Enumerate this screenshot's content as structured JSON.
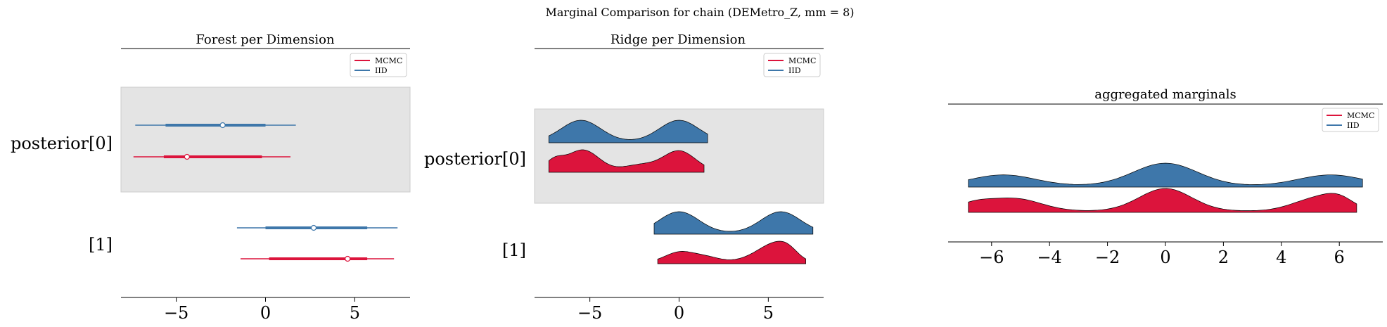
{
  "figure": {
    "suptitle": "Marginal Comparison for chain (DEMetro_Z, mm = 8)"
  },
  "colors": {
    "mcmc": "#dc143c",
    "iid": "#3e77aa",
    "highlight": "#e4e4e4"
  },
  "chart_data": [
    {
      "type": "forest",
      "title": "Forest per Dimension",
      "ylabels": [
        "posterior[0]",
        "[1]"
      ],
      "xticks": [
        -5,
        0,
        5
      ],
      "xlim": [
        -8.1,
        8.1
      ],
      "highlight_row": 0,
      "legend": {
        "placement": "top-right",
        "entries": [
          "MCMC",
          "IID"
        ]
      },
      "series": [
        {
          "name": "IID",
          "rows": [
            {
              "hdi94": [
                -7.3,
                1.7
              ],
              "hdi50": [
                -5.6,
                0.0
              ],
              "point": -2.4
            },
            {
              "hdi94": [
                -1.6,
                7.4
              ],
              "hdi50": [
                0.0,
                5.7
              ],
              "point": 2.7
            }
          ]
        },
        {
          "name": "MCMC",
          "rows": [
            {
              "hdi94": [
                -7.4,
                1.4
              ],
              "hdi50": [
                -5.7,
                -0.2
              ],
              "point": -4.4
            },
            {
              "hdi94": [
                -1.4,
                7.2
              ],
              "hdi50": [
                0.2,
                5.7
              ],
              "point": 4.6
            }
          ]
        }
      ]
    },
    {
      "type": "ridge",
      "title": "Ridge per Dimension",
      "ylabels": [
        "posterior[0]",
        "[1]"
      ],
      "xticks": [
        -5,
        0,
        5
      ],
      "xlim": [
        -8.1,
        8.1
      ],
      "highlight_row": 0,
      "legend": {
        "placement": "top-right",
        "entries": [
          "MCMC",
          "IID"
        ]
      },
      "series": [
        {
          "name": "IID",
          "rows": [
            {
              "range": [
                -7.3,
                1.6
              ],
              "peaks": [
                [
                  -5.5,
                  1.0,
                  1.1
                ],
                [
                  0.0,
                  1.0,
                  1.1
                ]
              ]
            },
            {
              "range": [
                -1.4,
                7.5
              ],
              "peaks": [
                [
                  0.0,
                  1.0,
                  1.1
                ],
                [
                  5.7,
                  1.0,
                  1.1
                ]
              ]
            }
          ]
        },
        {
          "name": "MCMC",
          "rows": [
            {
              "range": [
                -7.3,
                1.4
              ],
              "peaks": [
                [
                  -5.4,
                  1.0,
                  0.9
                ],
                [
                  -7.0,
                  0.45,
                  0.5
                ],
                [
                  -2.2,
                  0.28,
                  0.9
                ],
                [
                  0.0,
                  0.95,
                  0.9
                ]
              ]
            },
            {
              "range": [
                -1.2,
                7.1
              ],
              "peaks": [
                [
                  0.0,
                  0.75,
                  0.8
                ],
                [
                  1.5,
                  0.4,
                  0.8
                ],
                [
                  5.2,
                  1.0,
                  0.7
                ],
                [
                  6.1,
                  0.95,
                  0.6
                ],
                [
                  4.2,
                  0.4,
                  0.8
                ]
              ]
            }
          ]
        }
      ]
    },
    {
      "type": "area",
      "title": "aggregated marginals",
      "xticks": [
        -6,
        -4,
        -2,
        0,
        2,
        4,
        6
      ],
      "xlim": [
        -7.5,
        7.5
      ],
      "legend": {
        "placement": "top-right",
        "entries": [
          "MCMC",
          "IID"
        ]
      },
      "series": [
        {
          "name": "IID",
          "range": [
            -6.8,
            6.8
          ],
          "peaks": [
            [
              -5.6,
              0.48,
              1.1
            ],
            [
              0.0,
              1.0,
              1.1
            ],
            [
              5.7,
              0.48,
              1.1
            ]
          ]
        },
        {
          "name": "MCMC",
          "range": [
            -6.8,
            6.6
          ],
          "peaks": [
            [
              -5.2,
              0.55,
              0.9
            ],
            [
              -6.6,
              0.3,
              0.6
            ],
            [
              0.0,
              1.0,
              0.9
            ],
            [
              5.2,
              0.55,
              0.8
            ],
            [
              6.0,
              0.4,
              0.5
            ]
          ]
        }
      ]
    }
  ]
}
